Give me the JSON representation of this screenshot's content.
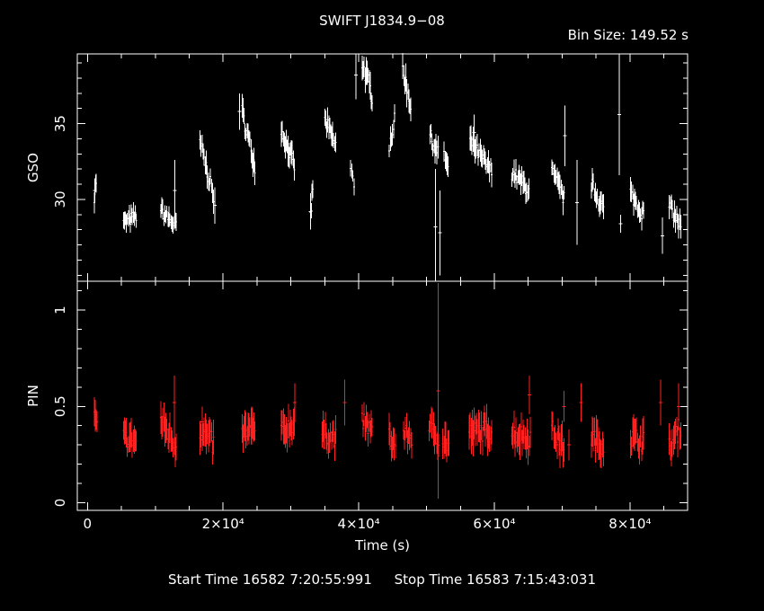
{
  "title": "SWIFT J1834.9−08",
  "bin_size": "Bin Size: 149.52 s",
  "xlabel": "Time (s)",
  "footer": {
    "start_label": "Start Time 16582  7:20:55:991",
    "stop_label": "Stop Time 16583  7:15:43:031"
  },
  "colors": {
    "gso": "#ffffff",
    "pin": "#ff2020",
    "axes": "#ffffff",
    "background": "#000000"
  },
  "chart_data": [
    {
      "type": "scatter",
      "panel": "top",
      "ylabel": "GSO",
      "xlim": [
        -1500,
        88500
      ],
      "ylim": [
        24.6,
        39.6
      ],
      "x_ticks": [
        0,
        20000,
        40000,
        60000,
        80000
      ],
      "x_tick_labels": [
        "0",
        "2×10⁴",
        "4×10⁴",
        "6×10⁴",
        "8×10⁴"
      ],
      "y_ticks": [
        30,
        35
      ],
      "y_tick_labels": [
        "30",
        "35"
      ],
      "series": [
        {
          "color": "#ffffff",
          "segments": [
            {
              "x0": 1000,
              "x1": 1300,
              "y0": 30.2,
              "y1": 31.2,
              "err": 0.6
            },
            {
              "x0": 5300,
              "x1": 7200,
              "y0": 28.4,
              "y1": 28.9,
              "err": 0.6
            },
            {
              "x0": 10800,
              "x1": 13100,
              "y0": 29.3,
              "y1": 28.2,
              "err": 0.6
            },
            {
              "x0": 16600,
              "x1": 18600,
              "y0": 33.8,
              "y1": 30.2,
              "err": 0.7
            },
            {
              "x0": 22800,
              "x1": 24700,
              "y0": 35.8,
              "y1": 32.2,
              "err": 0.7
            },
            {
              "x0": 28600,
              "x1": 30500,
              "y0": 34.6,
              "y1": 32.2,
              "err": 0.7
            },
            {
              "x0": 32900,
              "x1": 33200,
              "y0": 28.8,
              "y1": 30.8,
              "err": 0.6
            },
            {
              "x0": 35000,
              "x1": 36600,
              "y0": 35.2,
              "y1": 33.6,
              "err": 0.7
            },
            {
              "x0": 38800,
              "x1": 39300,
              "y0": 32.0,
              "y1": 31.0,
              "err": 0.6
            },
            {
              "x0": 40500,
              "x1": 42000,
              "y0": 39.0,
              "y1": 36.8,
              "err": 0.8
            },
            {
              "x0": 44500,
              "x1": 45300,
              "y0": 33.6,
              "y1": 35.2,
              "err": 0.7
            },
            {
              "x0": 46500,
              "x1": 47700,
              "y0": 38.6,
              "y1": 36.2,
              "err": 0.8
            },
            {
              "x0": 50500,
              "x1": 51700,
              "y0": 34.2,
              "y1": 33.0,
              "err": 0.7
            },
            {
              "x0": 52600,
              "x1": 53200,
              "y0": 33.0,
              "y1": 32.0,
              "err": 0.7
            },
            {
              "x0": 56400,
              "x1": 59600,
              "y0": 33.8,
              "y1": 31.8,
              "err": 0.7
            },
            {
              "x0": 62600,
              "x1": 65100,
              "y0": 31.8,
              "y1": 30.6,
              "err": 0.7
            },
            {
              "x0": 68500,
              "x1": 70300,
              "y0": 31.8,
              "y1": 30.0,
              "err": 0.7
            },
            {
              "x0": 74300,
              "x1": 76100,
              "y0": 31.0,
              "y1": 29.4,
              "err": 0.7
            },
            {
              "x0": 80100,
              "x1": 82000,
              "y0": 30.4,
              "y1": 29.0,
              "err": 0.7
            },
            {
              "x0": 85800,
              "x1": 87500,
              "y0": 29.6,
              "y1": 28.2,
              "err": 0.7
            }
          ],
          "points": [
            {
              "x": 1100,
              "y": 30.6,
              "err": 0.8
            },
            {
              "x": 12900,
              "y": 30.6,
              "err": 2.0
            },
            {
              "x": 18800,
              "y": 29.6,
              "err": 1.2
            },
            {
              "x": 22400,
              "y": 35.8,
              "err": 1.2
            },
            {
              "x": 29600,
              "y": 33.2,
              "err": 1.0
            },
            {
              "x": 32900,
              "y": 29.2,
              "err": 1.2
            },
            {
              "x": 39600,
              "y": 38.2,
              "err": 1.6
            },
            {
              "x": 51300,
              "y": 28.2,
              "err": 3.8
            },
            {
              "x": 52000,
              "y": 27.8,
              "err": 2.8
            },
            {
              "x": 57000,
              "y": 34.4,
              "err": 1.2
            },
            {
              "x": 70400,
              "y": 34.2,
              "err": 2.0
            },
            {
              "x": 72200,
              "y": 29.8,
              "err": 2.8
            },
            {
              "x": 78400,
              "y": 35.6,
              "err": 4.0
            },
            {
              "x": 78600,
              "y": 28.4,
              "err": 0.6
            },
            {
              "x": 84800,
              "y": 27.6,
              "err": 1.2
            }
          ]
        }
      ]
    },
    {
      "type": "scatter",
      "panel": "bottom",
      "ylabel": "PIN",
      "xlabel": "Time (s)",
      "xlim": [
        -1500,
        88500
      ],
      "ylim": [
        -0.04,
        1.15
      ],
      "x_ticks": [
        0,
        20000,
        40000,
        60000,
        80000
      ],
      "x_tick_labels": [
        "0",
        "2×10⁴",
        "4×10⁴",
        "6×10⁴",
        "8×10⁴"
      ],
      "y_ticks": [
        0,
        0.5,
        1
      ],
      "y_tick_labels": [
        "0",
        "0.5",
        "1"
      ],
      "series": [
        {
          "color": "#ff2020",
          "segments": [
            {
              "x0": 1000,
              "x1": 1400,
              "y0": 0.44,
              "y1": 0.4,
              "err": 0.07
            },
            {
              "x0": 5300,
              "x1": 7200,
              "y0": 0.34,
              "y1": 0.32,
              "err": 0.07
            },
            {
              "x0": 10800,
              "x1": 13100,
              "y0": 0.42,
              "y1": 0.3,
              "err": 0.08
            },
            {
              "x0": 16600,
              "x1": 18600,
              "y0": 0.38,
              "y1": 0.3,
              "err": 0.08
            },
            {
              "x0": 22800,
              "x1": 24700,
              "y0": 0.36,
              "y1": 0.38,
              "err": 0.08
            },
            {
              "x0": 28600,
              "x1": 30500,
              "y0": 0.36,
              "y1": 0.42,
              "err": 0.08
            },
            {
              "x0": 34600,
              "x1": 36600,
              "y0": 0.36,
              "y1": 0.34,
              "err": 0.07
            },
            {
              "x0": 40500,
              "x1": 42000,
              "y0": 0.42,
              "y1": 0.38,
              "err": 0.07
            },
            {
              "x0": 44500,
              "x1": 45400,
              "y0": 0.34,
              "y1": 0.3,
              "err": 0.07
            },
            {
              "x0": 46600,
              "x1": 47800,
              "y0": 0.36,
              "y1": 0.34,
              "err": 0.07
            },
            {
              "x0": 50400,
              "x1": 51800,
              "y0": 0.38,
              "y1": 0.34,
              "err": 0.08
            },
            {
              "x0": 52400,
              "x1": 53300,
              "y0": 0.32,
              "y1": 0.3,
              "err": 0.08
            },
            {
              "x0": 56300,
              "x1": 59600,
              "y0": 0.36,
              "y1": 0.38,
              "err": 0.08
            },
            {
              "x0": 62600,
              "x1": 65300,
              "y0": 0.36,
              "y1": 0.34,
              "err": 0.08
            },
            {
              "x0": 68500,
              "x1": 70300,
              "y0": 0.38,
              "y1": 0.28,
              "err": 0.08
            },
            {
              "x0": 74300,
              "x1": 76100,
              "y0": 0.34,
              "y1": 0.3,
              "err": 0.08
            },
            {
              "x0": 80100,
              "x1": 82000,
              "y0": 0.34,
              "y1": 0.32,
              "err": 0.08
            },
            {
              "x0": 85800,
              "x1": 87500,
              "y0": 0.28,
              "y1": 0.4,
              "err": 0.08
            }
          ],
          "points": [
            {
              "x": 12800,
              "y": 0.52,
              "err": 0.14
            },
            {
              "x": 16900,
              "y": 0.42,
              "err": 0.08
            },
            {
              "x": 24200,
              "y": 0.4,
              "err": 0.1
            },
            {
              "x": 30600,
              "y": 0.52,
              "err": 0.1
            },
            {
              "x": 37900,
              "y": 0.52,
              "err": 0.12
            },
            {
              "x": 51700,
              "y": 0.58,
              "err": 0.56
            },
            {
              "x": 65200,
              "y": 0.56,
              "err": 0.1
            },
            {
              "x": 70300,
              "y": 0.5,
              "err": 0.08
            },
            {
              "x": 71000,
              "y": 0.3,
              "err": 0.08
            },
            {
              "x": 72800,
              "y": 0.52,
              "err": 0.1
            },
            {
              "x": 84500,
              "y": 0.52,
              "err": 0.12
            },
            {
              "x": 87200,
              "y": 0.5,
              "err": 0.12
            }
          ]
        }
      ]
    }
  ]
}
